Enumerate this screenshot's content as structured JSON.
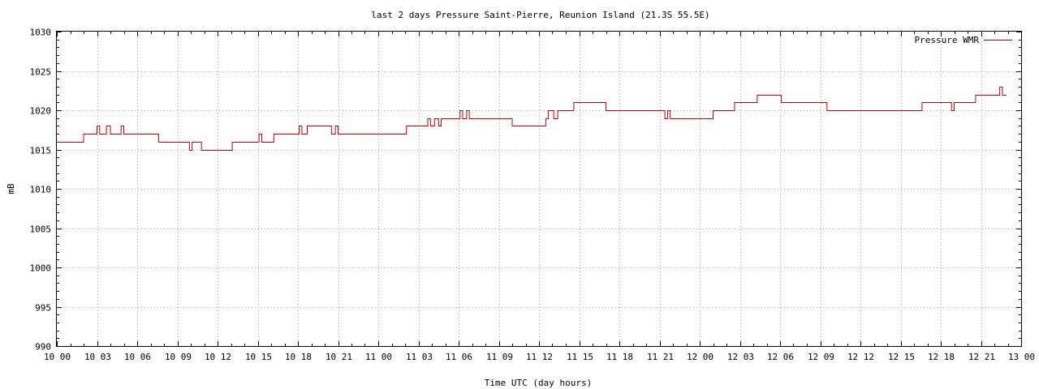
{
  "chart_data": {
    "type": "line",
    "title": "last 2 days Pressure Saint-Pierre, Reunion Island (21.3S 55.5E)",
    "xlabel": "Time UTC (day hours)",
    "ylabel": "mB",
    "xlim": [
      0,
      72
    ],
    "ylim": [
      990,
      1030
    ],
    "x_tick_labels": [
      "10 00",
      "10 03",
      "10 06",
      "10 09",
      "10 12",
      "10 15",
      "10 18",
      "10 21",
      "11 00",
      "11 03",
      "11 06",
      "11 09",
      "11 12",
      "11 15",
      "11 18",
      "11 21",
      "12 00",
      "12 03",
      "12 06",
      "12 09",
      "12 12",
      "12 15",
      "12 18",
      "12 21",
      "13 00"
    ],
    "y_ticks": [
      990,
      995,
      1000,
      1005,
      1010,
      1015,
      1020,
      1025,
      1030
    ],
    "grid": true,
    "legend_position": "top-right",
    "line_style": "step",
    "series": [
      {
        "name": "Pressure WMR",
        "color": "#cc0000",
        "x": [
          0,
          2.0,
          3.0,
          3.2,
          3.7,
          4.0,
          4.3,
          4.8,
          5.0,
          5.3,
          7.6,
          9.9,
          10.1,
          10.3,
          10.8,
          13.1,
          15.1,
          15.3,
          15.5,
          16.2,
          18.1,
          18.3,
          18.7,
          20.5,
          20.8,
          21.0,
          26.1,
          27.7,
          27.9,
          28.2,
          28.5,
          28.7,
          30.1,
          30.3,
          30.6,
          30.8,
          34.0,
          36.5,
          36.7,
          37.1,
          37.4,
          38.6,
          41.0,
          41.3,
          45.4,
          45.6,
          45.8,
          49.0,
          50.6,
          52.3,
          54.1,
          57.5,
          64.6,
          66.8,
          67.0,
          67.3,
          68.6,
          70.4,
          70.6,
          70.9
        ],
        "values": [
          1016,
          1017,
          1018,
          1017,
          1018,
          1017,
          1017,
          1018,
          1017,
          1017,
          1016,
          1015,
          1016,
          1016,
          1015,
          1016,
          1017,
          1016,
          1016,
          1017,
          1018,
          1017,
          1018,
          1017,
          1018,
          1017,
          1018,
          1019,
          1018,
          1019,
          1018,
          1019,
          1020,
          1019,
          1020,
          1019,
          1018,
          1019,
          1020,
          1019,
          1020,
          1021,
          1020,
          1020,
          1019,
          1020,
          1019,
          1020,
          1021,
          1022,
          1021,
          1020,
          1021,
          1020,
          1021,
          1021,
          1022,
          1023,
          1022,
          1022
        ]
      }
    ]
  }
}
